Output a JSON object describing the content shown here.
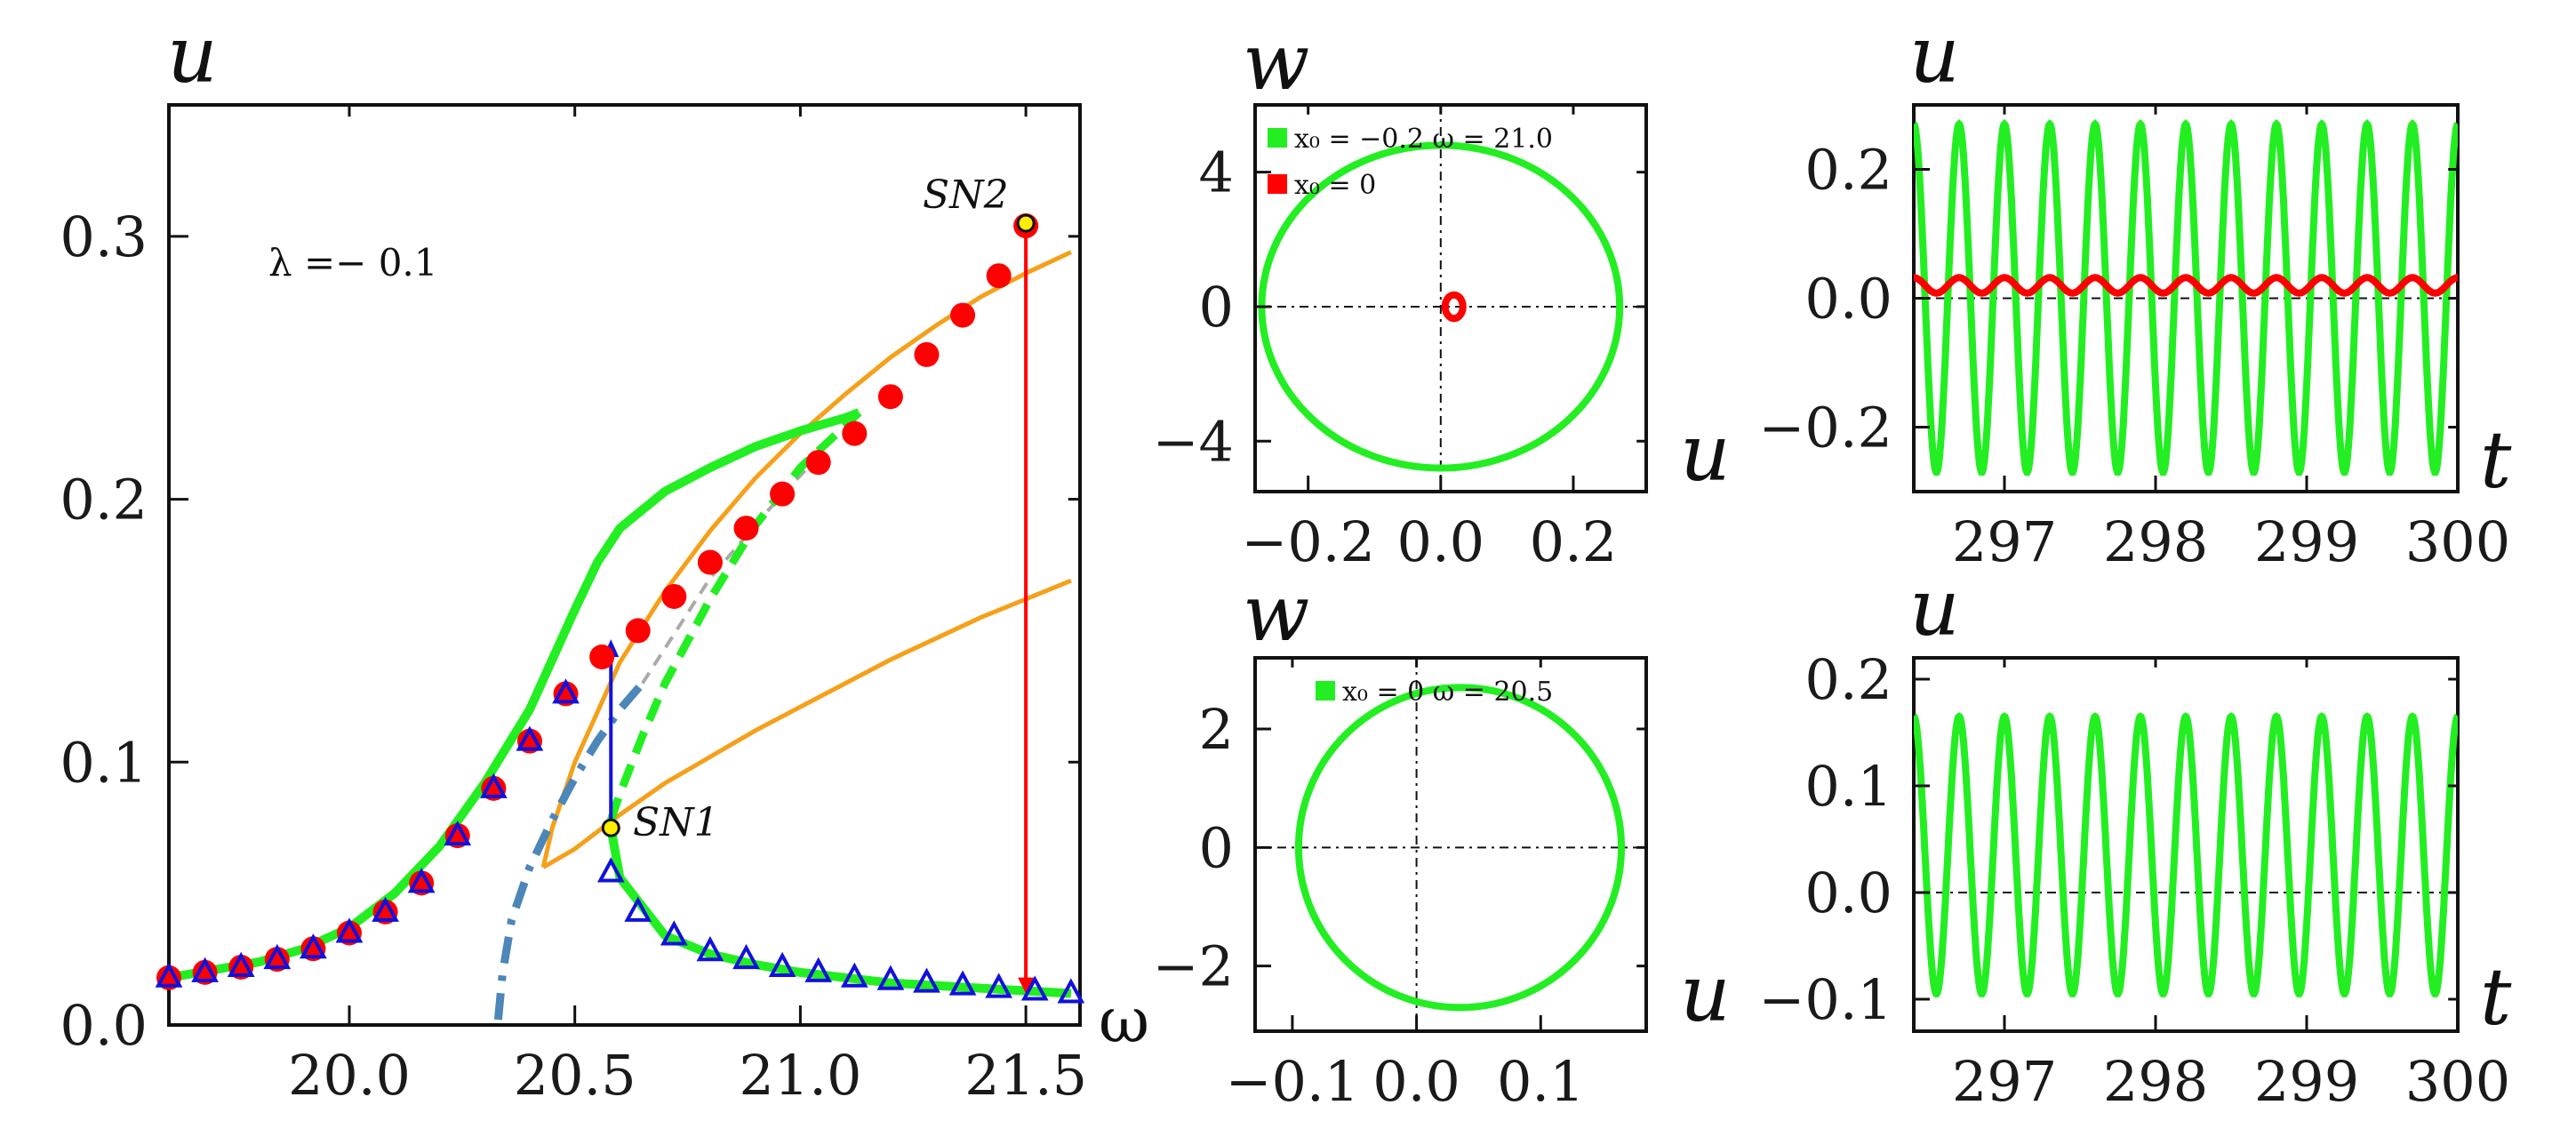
{
  "chart_data": [
    {
      "type": "line",
      "panel": "bifurcation",
      "title": "",
      "ylabel": "u",
      "xlabel": "ω",
      "xlim": [
        19.6,
        21.62
      ],
      "ylim": [
        0.0,
        0.35
      ],
      "xticks": [
        20.0,
        20.5,
        21.0,
        21.5
      ],
      "xtick_labels": [
        "20.0",
        "20.5",
        "21.0",
        "21.5"
      ],
      "yticks": [
        0.0,
        0.1,
        0.2,
        0.3
      ],
      "ytick_labels": [
        "0.0",
        "0.1",
        "0.2",
        "0.3"
      ],
      "annotations": {
        "lambda": "λ =− 0.1",
        "sn1": "SN1",
        "sn2": "SN2"
      },
      "colors": {
        "green": "#22ee22",
        "orange": "#f5a01a",
        "red": "#ff0000",
        "blue": "#1111dd",
        "steel": "#4d86b8",
        "gray": "#aaaaaa"
      },
      "series": [
        {
          "name": "stable lower branch (green)",
          "x": [
            19.6,
            19.7,
            19.8,
            19.9,
            20.0,
            20.1,
            20.2,
            20.3,
            20.4,
            20.5,
            20.55,
            20.6,
            20.7,
            20.8,
            20.9,
            21.0,
            21.1,
            21.13
          ],
          "y": [
            0.018,
            0.021,
            0.024,
            0.029,
            0.037,
            0.05,
            0.068,
            0.092,
            0.12,
            0.158,
            0.176,
            0.189,
            0.203,
            0.212,
            0.22,
            0.226,
            0.231,
            0.233
          ]
        },
        {
          "name": "unstable branch (green dashed)",
          "x": [
            20.58,
            20.6,
            20.65,
            20.7,
            20.8,
            20.9,
            21.0,
            21.1,
            21.13
          ],
          "y": [
            0.078,
            0.088,
            0.11,
            0.13,
            0.162,
            0.19,
            0.212,
            0.228,
            0.233
          ]
        },
        {
          "name": "upper branch after SN1 (green)",
          "x": [
            20.58,
            20.6,
            20.7,
            20.8,
            20.9,
            21.0,
            21.1,
            21.2,
            21.3,
            21.4,
            21.5,
            21.6
          ],
          "y": [
            0.075,
            0.056,
            0.034,
            0.027,
            0.023,
            0.02,
            0.018,
            0.016,
            0.015,
            0.014,
            0.013,
            0.012
          ]
        },
        {
          "name": "orange upper curve",
          "x": [
            20.43,
            20.45,
            20.5,
            20.6,
            20.7,
            20.8,
            20.9,
            21.0,
            21.1,
            21.2,
            21.3,
            21.4,
            21.5,
            21.6
          ],
          "y": [
            0.06,
            0.075,
            0.1,
            0.138,
            0.165,
            0.188,
            0.208,
            0.225,
            0.24,
            0.254,
            0.266,
            0.277,
            0.286,
            0.294
          ]
        },
        {
          "name": "orange lower curve",
          "x": [
            20.43,
            20.5,
            20.6,
            20.7,
            20.8,
            20.9,
            21.0,
            21.1,
            21.2,
            21.3,
            21.4,
            21.5,
            21.6
          ],
          "y": [
            0.06,
            0.067,
            0.08,
            0.092,
            0.102,
            0.112,
            0.121,
            0.13,
            0.139,
            0.147,
            0.155,
            0.162,
            0.169
          ]
        },
        {
          "name": "steel-blue dash-dot",
          "x": [
            20.33,
            20.34,
            20.36,
            20.4,
            20.45,
            20.5,
            20.55,
            20.6,
            20.65
          ],
          "y": [
            0.002,
            0.02,
            0.04,
            0.06,
            0.078,
            0.094,
            0.108,
            0.12,
            0.13
          ]
        },
        {
          "name": "red circles (numerics, upper)",
          "x": [
            19.6,
            19.68,
            19.76,
            19.84,
            19.92,
            20.0,
            20.08,
            20.16,
            20.24,
            20.32,
            20.4,
            20.48,
            20.56,
            20.64,
            20.72,
            20.8,
            20.88,
            20.96,
            21.04,
            21.12,
            21.2,
            21.28,
            21.36,
            21.44,
            21.5
          ],
          "y": [
            0.018,
            0.02,
            0.022,
            0.025,
            0.029,
            0.035,
            0.043,
            0.054,
            0.072,
            0.09,
            0.108,
            0.126,
            0.14,
            0.15,
            0.163,
            0.176,
            0.189,
            0.202,
            0.214,
            0.225,
            0.239,
            0.255,
            0.27,
            0.285,
            0.304
          ]
        },
        {
          "name": "blue triangles (numerics)",
          "x": [
            19.6,
            19.68,
            19.76,
            19.84,
            19.92,
            20.0,
            20.08,
            20.16,
            20.24,
            20.32,
            20.4,
            20.48,
            20.58,
            20.64,
            20.72,
            20.8,
            20.88,
            20.96,
            21.04,
            21.12,
            21.2,
            21.28,
            21.36,
            21.44,
            21.52,
            21.6
          ],
          "y": [
            0.018,
            0.02,
            0.022,
            0.025,
            0.029,
            0.035,
            0.043,
            0.054,
            0.072,
            0.09,
            0.108,
            0.126,
            0.058,
            0.043,
            0.034,
            0.028,
            0.025,
            0.022,
            0.02,
            0.018,
            0.017,
            0.016,
            0.015,
            0.014,
            0.013,
            0.012
          ]
        }
      ],
      "jumps": [
        {
          "name": "blue jump SN1",
          "x": 20.58,
          "y_from": 0.076,
          "y_to": 0.142
        },
        {
          "name": "red jump SN2",
          "x": 21.5,
          "y_from": 0.305,
          "y_to": 0.016
        }
      ],
      "points": [
        {
          "name": "SN1",
          "x": 20.58,
          "y": 0.075
        },
        {
          "name": "SN2",
          "x": 21.5,
          "y": 0.305
        }
      ]
    },
    {
      "type": "line",
      "panel": "phase-top",
      "xlabel": "u",
      "ylabel": "w",
      "xlim": [
        -0.28,
        0.31
      ],
      "ylim": [
        -5.5,
        6.0
      ],
      "xticks": [
        -0.2,
        0.0,
        0.2
      ],
      "xtick_labels": [
        "−0.2",
        "0.0",
        "0.2"
      ],
      "yticks": [
        -4,
        0,
        4
      ],
      "ytick_labels": [
        "−4",
        "0",
        "4"
      ],
      "legend": [
        "x₀ = −0.2  ω = 21.0",
        "x₀ = 0"
      ],
      "series": [
        {
          "name": "x0=-0.2 orbit",
          "color": "#22ee22",
          "shape": "ellipse",
          "cx": 0.0,
          "cy": 0.0,
          "rx": 0.27,
          "ry": 4.8
        },
        {
          "name": "x0=0 orbit",
          "color": "#ff0000",
          "shape": "ellipse",
          "cx": 0.02,
          "cy": 0.0,
          "rx": 0.012,
          "ry": 0.35
        }
      ]
    },
    {
      "type": "line",
      "panel": "time-top",
      "xlabel": "t",
      "ylabel": "u",
      "xlim": [
        296.4,
        300.0
      ],
      "ylim": [
        -0.3,
        0.3
      ],
      "xticks": [
        297,
        298,
        299,
        300
      ],
      "xtick_labels": [
        "297",
        "298",
        "299",
        "300"
      ],
      "yticks": [
        -0.2,
        0.0,
        0.2
      ],
      "ytick_labels": [
        "−0.2",
        "0.0",
        "0.2"
      ],
      "series": [
        {
          "name": "x0=-0.2",
          "color": "#22ee22",
          "amplitude": 0.27,
          "offset": 0.0,
          "period": 0.3
        },
        {
          "name": "x0=0",
          "color": "#ff0000",
          "amplitude": 0.012,
          "offset": 0.02,
          "period": 0.3
        }
      ]
    },
    {
      "type": "line",
      "panel": "phase-bottom",
      "xlabel": "u",
      "ylabel": "w",
      "xlim": [
        -0.13,
        0.185
      ],
      "ylim": [
        -3.1,
        3.2
      ],
      "xticks": [
        -0.1,
        0.0,
        0.1
      ],
      "xtick_labels": [
        "−0.1",
        "0.0",
        "0.1"
      ],
      "yticks": [
        -2,
        0,
        2
      ],
      "ytick_labels": [
        "−2",
        "0",
        "2"
      ],
      "legend": [
        "x₀ = 0    ω = 20.5"
      ],
      "series": [
        {
          "name": "x0=0 orbit",
          "color": "#22ee22",
          "shape": "ellipse",
          "cx": 0.035,
          "cy": 0.0,
          "rx": 0.13,
          "ry": 2.7
        }
      ]
    },
    {
      "type": "line",
      "panel": "time-bottom",
      "xlabel": "t",
      "ylabel": "u",
      "xlim": [
        296.4,
        300.0
      ],
      "ylim": [
        -0.13,
        0.22
      ],
      "xticks": [
        297,
        298,
        299,
        300
      ],
      "xtick_labels": [
        "297",
        "298",
        "299",
        "300"
      ],
      "yticks": [
        -0.1,
        0.0,
        0.1,
        0.2
      ],
      "ytick_labels": [
        "−0.1",
        "0.0",
        "0.1",
        "0.2"
      ],
      "series": [
        {
          "name": "x0=0",
          "color": "#22ee22",
          "amplitude": 0.13,
          "offset": 0.035,
          "period": 0.3
        }
      ]
    }
  ]
}
